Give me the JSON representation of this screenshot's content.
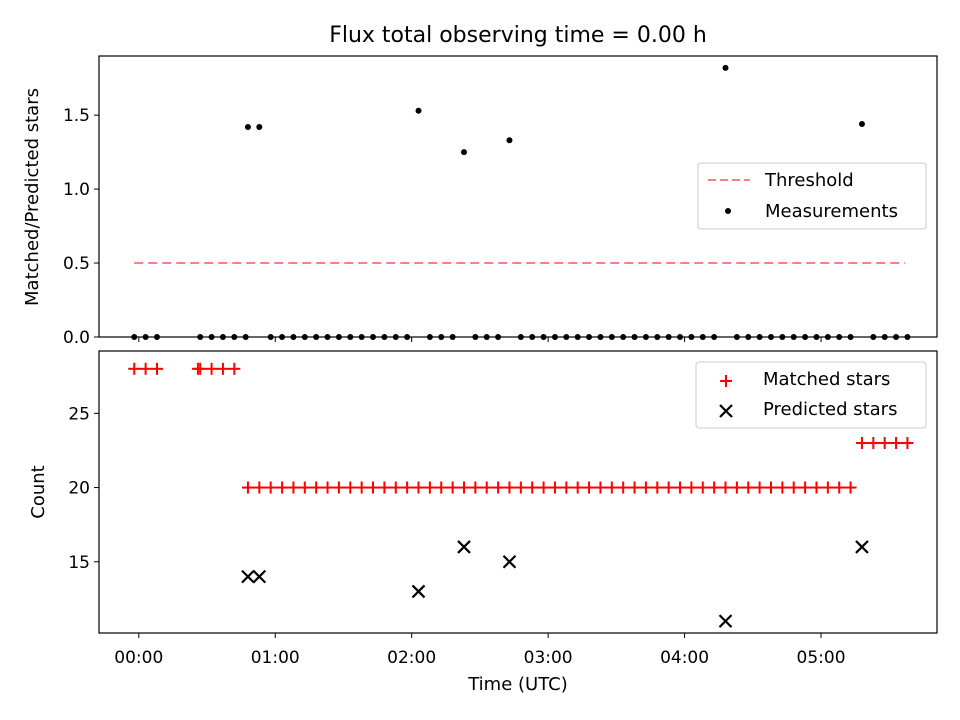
{
  "chart_data": [
    {
      "type": "scatter",
      "title": "Flux total observing time = 0.00 h",
      "xlabel": "",
      "ylabel": "Matched/Predicted stars",
      "x_unit": "minutes after 00:00 UTC",
      "xlim": [
        -17.5,
        351
      ],
      "ylim": [
        0,
        1.9
      ],
      "yticks": [
        0.0,
        0.5,
        1.0,
        1.5
      ],
      "ytick_labels": [
        "0.0",
        "0.5",
        "1.0",
        "1.5"
      ],
      "xticks": [
        0,
        60,
        120,
        180,
        240,
        300
      ],
      "legend_position": "center-right",
      "threshold": {
        "name": "Threshold",
        "value": 0.5,
        "x_range": [
          -2,
          337
        ],
        "color": "#ff7f7f",
        "style": "dashed"
      },
      "series": [
        {
          "name": "Measurements",
          "color": "#000000",
          "marker": "dot",
          "points": [
            [
              -2,
              0
            ],
            [
              3,
              0
            ],
            [
              8,
              0
            ],
            [
              27,
              0
            ],
            [
              32,
              0
            ],
            [
              37,
              0
            ],
            [
              42,
              0
            ],
            [
              47,
              0
            ],
            [
              48,
              1.42
            ],
            [
              53,
              1.42
            ],
            [
              58,
              0
            ],
            [
              63,
              0
            ],
            [
              68,
              0
            ],
            [
              73,
              0
            ],
            [
              78,
              0
            ],
            [
              83,
              0
            ],
            [
              88,
              0
            ],
            [
              93,
              0
            ],
            [
              98,
              0
            ],
            [
              103,
              0
            ],
            [
              108,
              0
            ],
            [
              113,
              0
            ],
            [
              118,
              0
            ],
            [
              123,
              1.53
            ],
            [
              128,
              0
            ],
            [
              133,
              0
            ],
            [
              138,
              0
            ],
            [
              143,
              1.25
            ],
            [
              148,
              0
            ],
            [
              153,
              0
            ],
            [
              158,
              0
            ],
            [
              163,
              1.33
            ],
            [
              168,
              0
            ],
            [
              173,
              0
            ],
            [
              178,
              0
            ],
            [
              183,
              0
            ],
            [
              188,
              0
            ],
            [
              193,
              0
            ],
            [
              198,
              0
            ],
            [
              203,
              0
            ],
            [
              208,
              0
            ],
            [
              213,
              0
            ],
            [
              218,
              0
            ],
            [
              223,
              0
            ],
            [
              228,
              0
            ],
            [
              233,
              0
            ],
            [
              238,
              0
            ],
            [
              243,
              0
            ],
            [
              248,
              0
            ],
            [
              253,
              0
            ],
            [
              258,
              1.82
            ],
            [
              263,
              0
            ],
            [
              268,
              0
            ],
            [
              273,
              0
            ],
            [
              278,
              0
            ],
            [
              283,
              0
            ],
            [
              288,
              0
            ],
            [
              293,
              0
            ],
            [
              298,
              0
            ],
            [
              303,
              0
            ],
            [
              308,
              0
            ],
            [
              313,
              0
            ],
            [
              318,
              1.44
            ],
            [
              323,
              0
            ],
            [
              328,
              0
            ],
            [
              333,
              0
            ],
            [
              338,
              0
            ]
          ]
        }
      ]
    },
    {
      "type": "scatter",
      "xlabel": "Time (UTC)",
      "ylabel": "Count",
      "x_unit": "minutes after 00:00 UTC",
      "xlim": [
        -17.5,
        351
      ],
      "ylim": [
        10.2,
        29.2
      ],
      "yticks": [
        15,
        20,
        25
      ],
      "ytick_labels": [
        "15",
        "20",
        "25"
      ],
      "xticks": [
        0,
        60,
        120,
        180,
        240,
        300
      ],
      "xtick_labels": [
        "00:00",
        "01:00",
        "02:00",
        "03:00",
        "04:00",
        "05:00"
      ],
      "legend_position": "upper-right",
      "series": [
        {
          "name": "Matched stars",
          "color": "#ff0000",
          "marker": "plus",
          "points": [
            [
              -2,
              28
            ],
            [
              3,
              28
            ],
            [
              8,
              28
            ],
            [
              26,
              28
            ],
            [
              27,
              28
            ],
            [
              32,
              28
            ],
            [
              37,
              28
            ],
            [
              42,
              28
            ],
            [
              48,
              20
            ],
            [
              53,
              20
            ],
            [
              58,
              20
            ],
            [
              63,
              20
            ],
            [
              68,
              20
            ],
            [
              73,
              20
            ],
            [
              78,
              20
            ],
            [
              83,
              20
            ],
            [
              88,
              20
            ],
            [
              93,
              20
            ],
            [
              98,
              20
            ],
            [
              103,
              20
            ],
            [
              108,
              20
            ],
            [
              113,
              20
            ],
            [
              118,
              20
            ],
            [
              123,
              20
            ],
            [
              128,
              20
            ],
            [
              133,
              20
            ],
            [
              138,
              20
            ],
            [
              143,
              20
            ],
            [
              148,
              20
            ],
            [
              153,
              20
            ],
            [
              158,
              20
            ],
            [
              163,
              20
            ],
            [
              168,
              20
            ],
            [
              173,
              20
            ],
            [
              178,
              20
            ],
            [
              183,
              20
            ],
            [
              188,
              20
            ],
            [
              193,
              20
            ],
            [
              198,
              20
            ],
            [
              203,
              20
            ],
            [
              208,
              20
            ],
            [
              213,
              20
            ],
            [
              218,
              20
            ],
            [
              223,
              20
            ],
            [
              228,
              20
            ],
            [
              233,
              20
            ],
            [
              238,
              20
            ],
            [
              243,
              20
            ],
            [
              248,
              20
            ],
            [
              253,
              20
            ],
            [
              258,
              20
            ],
            [
              263,
              20
            ],
            [
              268,
              20
            ],
            [
              273,
              20
            ],
            [
              278,
              20
            ],
            [
              283,
              20
            ],
            [
              288,
              20
            ],
            [
              293,
              20
            ],
            [
              298,
              20
            ],
            [
              303,
              20
            ],
            [
              308,
              20
            ],
            [
              313,
              20
            ],
            [
              318,
              23
            ],
            [
              323,
              23
            ],
            [
              328,
              23
            ],
            [
              333,
              23
            ],
            [
              338,
              23
            ]
          ]
        },
        {
          "name": "Predicted stars",
          "color": "#000000",
          "marker": "x",
          "points": [
            [
              48,
              14
            ],
            [
              53,
              14
            ],
            [
              123,
              13
            ],
            [
              143,
              16
            ],
            [
              163,
              15
            ],
            [
              258,
              11
            ],
            [
              318,
              16
            ]
          ]
        }
      ]
    }
  ]
}
